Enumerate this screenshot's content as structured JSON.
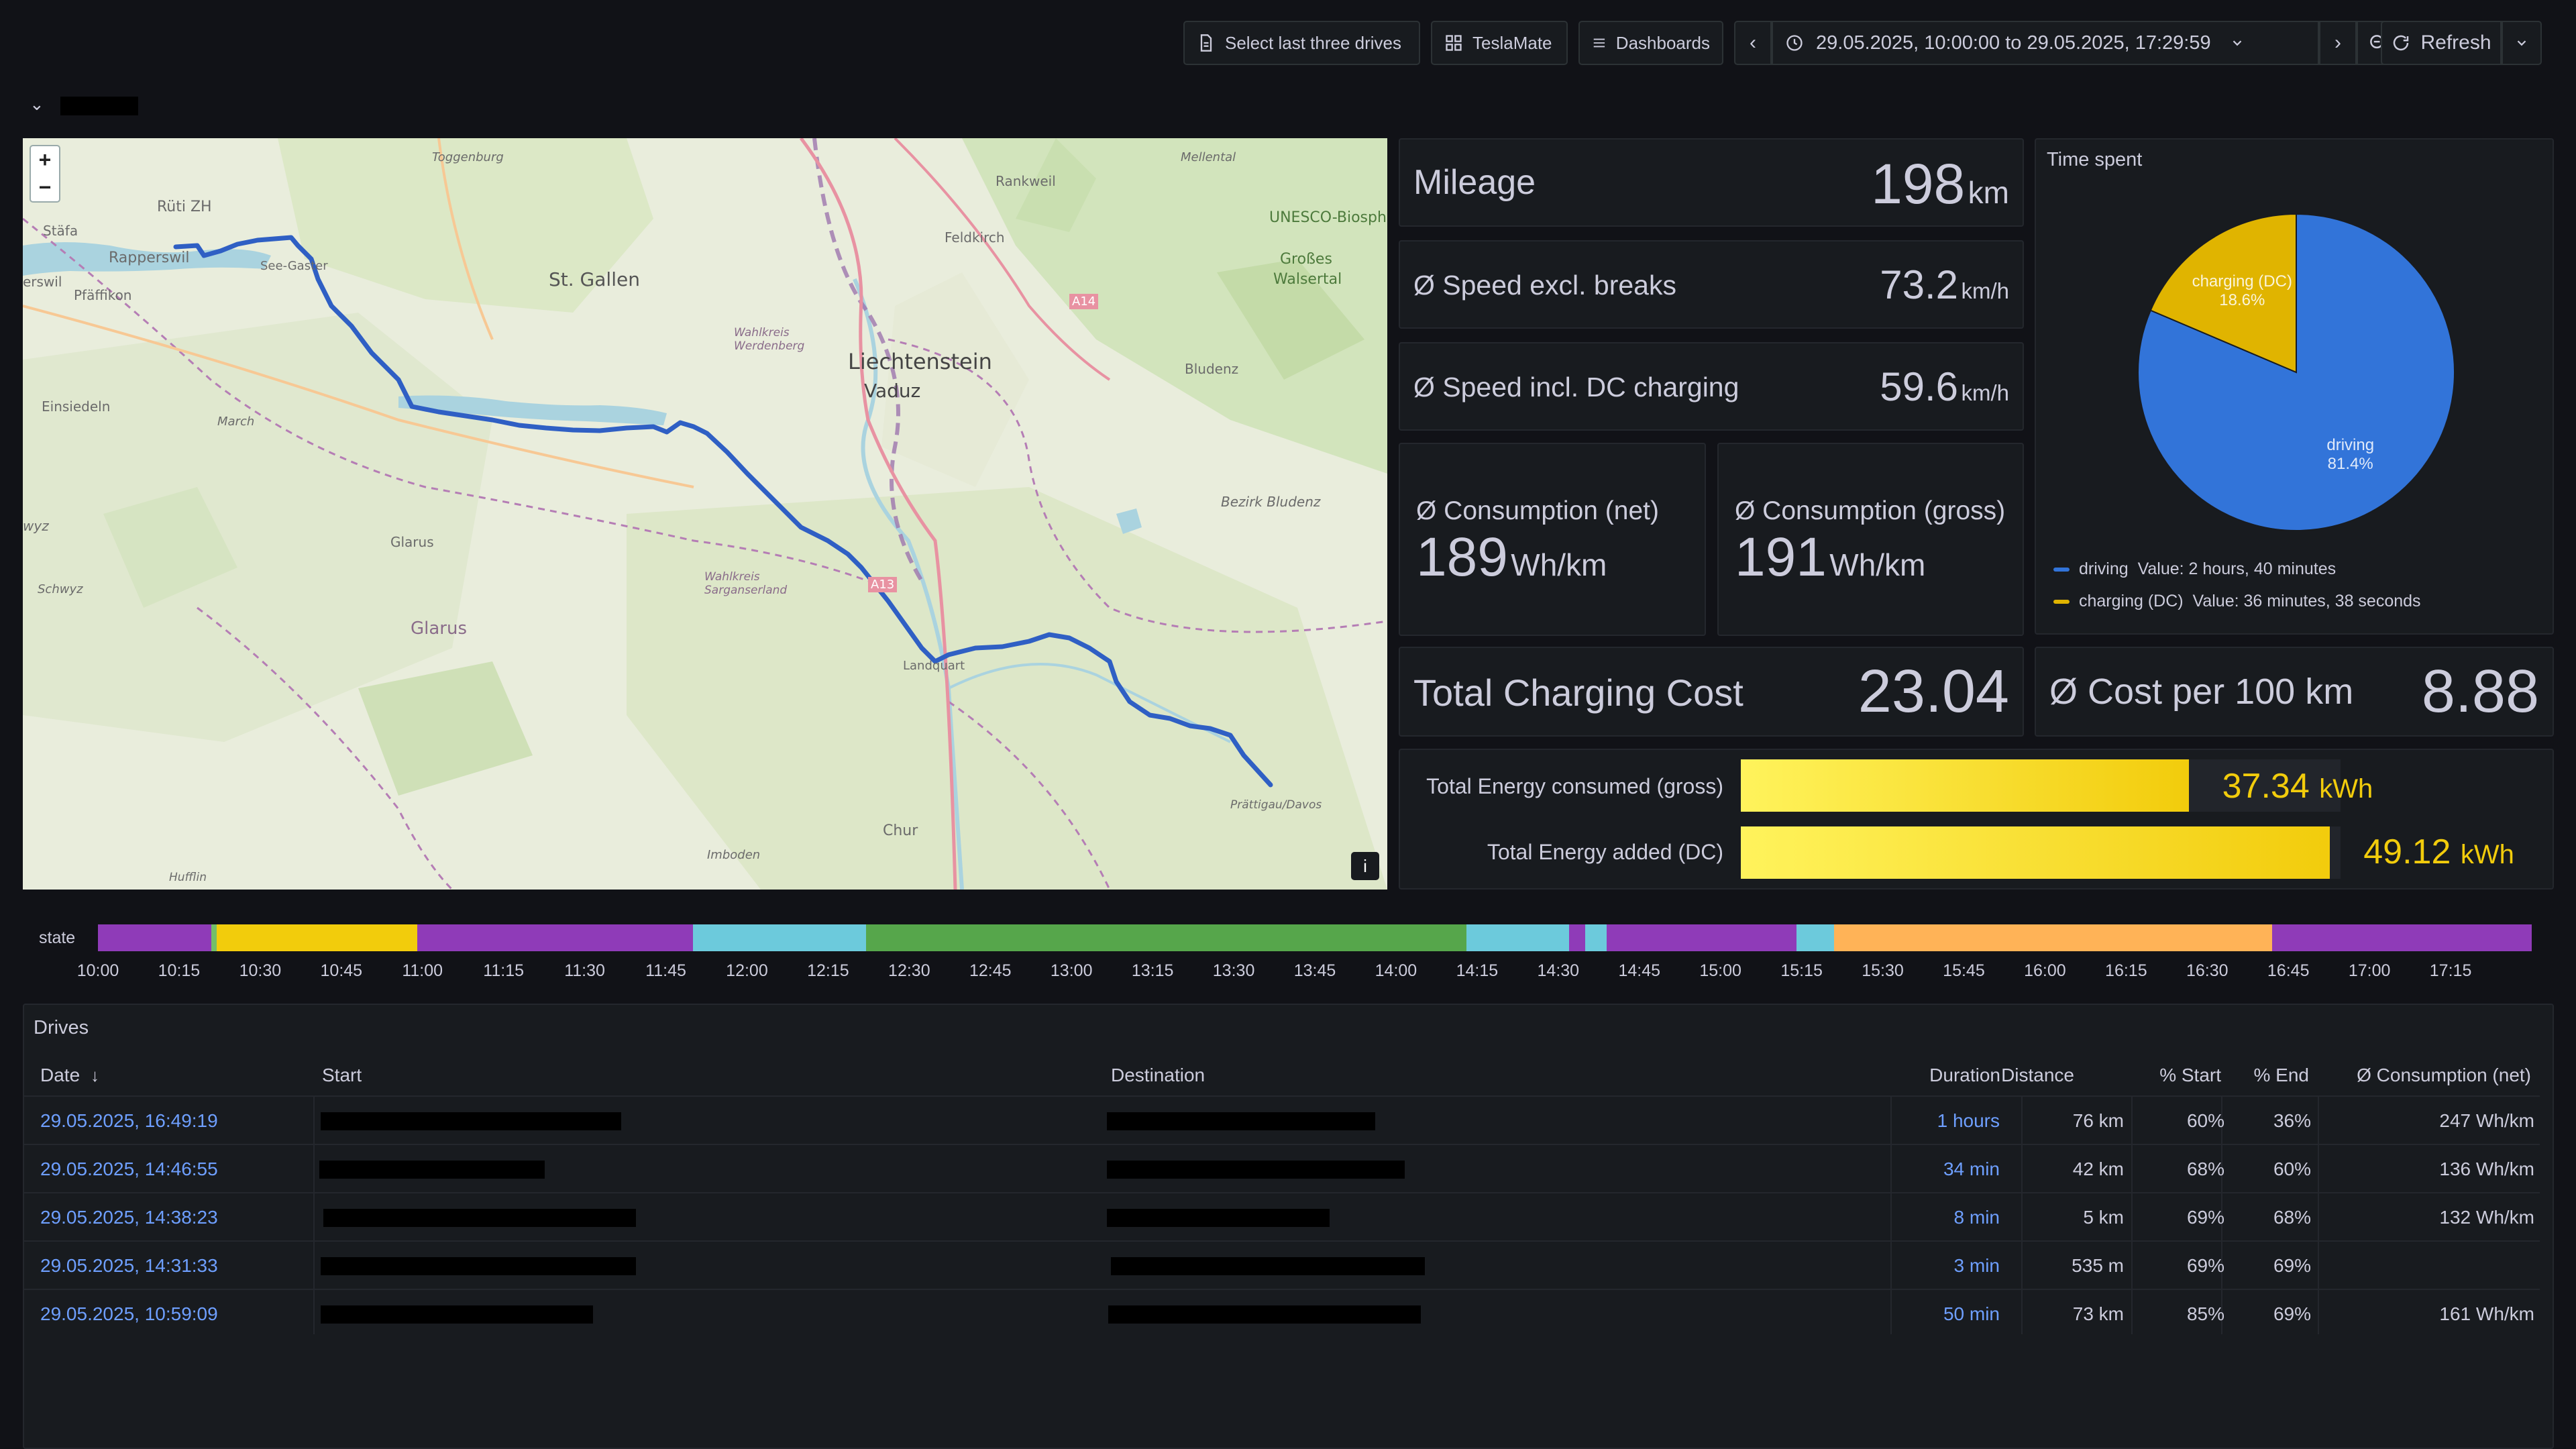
{
  "toolbar": {
    "select_drives": "Select last three drives",
    "teslamate": "TeslaMate",
    "dashboards": "Dashboards",
    "time_range": "29.05.2025, 10:00:00 to 29.05.2025, 17:29:59",
    "refresh": "Refresh"
  },
  "map": {
    "labels": [
      "Rüti ZH",
      "Stäfa",
      "Rapperswil",
      "Pfäffikon",
      "erswil",
      "Einsiedeln",
      "wyz",
      "Schwyz",
      "St. Gallen",
      "Rankweil",
      "Feldkirch",
      "Liechtenstein",
      "Vaduz",
      "UNESCO-Biosphärenpark",
      "Großes",
      "Walsertal",
      "Bludenz",
      "Bezirk Bludenz",
      "Glarus",
      "Glarus",
      "Wahlkreis Werdenberg",
      "Wahlkreis Sarganserland",
      "Landquart",
      "Chur",
      "Imboden",
      "Prättigau/Davos",
      "Toggenburg",
      "Mellental",
      "March",
      "See-Gaster",
      "A14",
      "A13",
      "Hufflin"
    ],
    "zoom_in": "+",
    "zoom_out": "−",
    "info": "i"
  },
  "stats": {
    "mileage": {
      "label": "Mileage",
      "value": "198",
      "unit": "km"
    },
    "speed_excl": {
      "label": "Ø Speed excl. breaks",
      "value": "73.2",
      "unit": "km/h"
    },
    "speed_incl": {
      "label": "Ø Speed incl. DC charging",
      "value": "59.6",
      "unit": "km/h"
    },
    "cons_net": {
      "label": "Ø Consumption (net)",
      "value": "189",
      "unit": "Wh/km"
    },
    "cons_gross": {
      "label": "Ø Consumption (gross)",
      "value": "191",
      "unit": "Wh/km"
    },
    "charging_cost": {
      "label": "Total Charging Cost",
      "value": "23.04"
    },
    "cost_per_100": {
      "label": "Ø Cost per 100 km",
      "value": "8.88"
    }
  },
  "time_spent": {
    "title": "Time spent",
    "slices": [
      {
        "name": "driving",
        "percent": 81.4,
        "label_pct": "81.4%",
        "value": "Value: 2 hours, 40 minutes",
        "color": "#3274d9"
      },
      {
        "name": "charging (DC)",
        "percent": 18.6,
        "label_pct": "18.6%",
        "value": "Value: 36 minutes, 38 seconds",
        "color": "#e0b400"
      }
    ]
  },
  "energy": {
    "max": 50,
    "items": [
      {
        "label": "Total Energy consumed (gross)",
        "value": 37.34,
        "value_text": "37.34",
        "unit": "kWh"
      },
      {
        "label": "Total Energy added (DC)",
        "value": 49.12,
        "value_text": "49.12",
        "unit": "kWh"
      }
    ]
  },
  "state_timeline": {
    "label": "state",
    "start_minutes": 600,
    "end_minutes": 1050,
    "segments": [
      {
        "from": 600,
        "to": 621,
        "color": "#8f3bb8"
      },
      {
        "from": 621,
        "to": 622,
        "color": "#73bf69"
      },
      {
        "from": 622,
        "to": 659,
        "color": "#f2cc0c"
      },
      {
        "from": 659,
        "to": 710,
        "color": "#8f3bb8"
      },
      {
        "from": 710,
        "to": 742,
        "color": "#6ccadc"
      },
      {
        "from": 742,
        "to": 853,
        "color": "#56a64b"
      },
      {
        "from": 853,
        "to": 872,
        "color": "#6ccadc"
      },
      {
        "from": 872,
        "to": 875,
        "color": "#8f3bb8"
      },
      {
        "from": 875,
        "to": 879,
        "color": "#6ccadc"
      },
      {
        "from": 879,
        "to": 914,
        "color": "#8f3bb8"
      },
      {
        "from": 914,
        "to": 921,
        "color": "#6ccadc"
      },
      {
        "from": 921,
        "to": 1002,
        "color": "#ffb357"
      },
      {
        "from": 1002,
        "to": 1050,
        "color": "#8f3bb8"
      }
    ],
    "ticks": [
      "10:00",
      "10:15",
      "10:30",
      "10:45",
      "11:00",
      "11:15",
      "11:30",
      "11:45",
      "12:00",
      "12:15",
      "12:30",
      "12:45",
      "13:00",
      "13:15",
      "13:30",
      "13:45",
      "14:00",
      "14:15",
      "14:30",
      "14:45",
      "15:00",
      "15:15",
      "15:30",
      "15:45",
      "16:00",
      "16:15",
      "16:30",
      "16:45",
      "17:00",
      "17:15"
    ]
  },
  "drives": {
    "title": "Drives",
    "columns": [
      "Date",
      "Start",
      "Destination",
      "Duration",
      "Distance",
      "% Start",
      "% End",
      "Ø Consumption (net)"
    ],
    "rows": [
      {
        "date": "29.05.2025, 16:49:19",
        "duration": "1 hours",
        "distance": "76 km",
        "pct_start": "60%",
        "pct_end": "36%",
        "consumption": "247 Wh/km"
      },
      {
        "date": "29.05.2025, 14:46:55",
        "duration": "34 min",
        "distance": "42 km",
        "pct_start": "68%",
        "pct_end": "60%",
        "consumption": "136 Wh/km"
      },
      {
        "date": "29.05.2025, 14:38:23",
        "duration": "8 min",
        "distance": "5 km",
        "pct_start": "69%",
        "pct_end": "68%",
        "consumption": "132 Wh/km"
      },
      {
        "date": "29.05.2025, 14:31:33",
        "duration": "3 min",
        "distance": "535 m",
        "pct_start": "69%",
        "pct_end": "69%",
        "consumption": ""
      },
      {
        "date": "29.05.2025, 10:59:09",
        "duration": "50 min",
        "distance": "73 km",
        "pct_start": "85%",
        "pct_end": "69%",
        "consumption": "161 Wh/km"
      }
    ]
  }
}
